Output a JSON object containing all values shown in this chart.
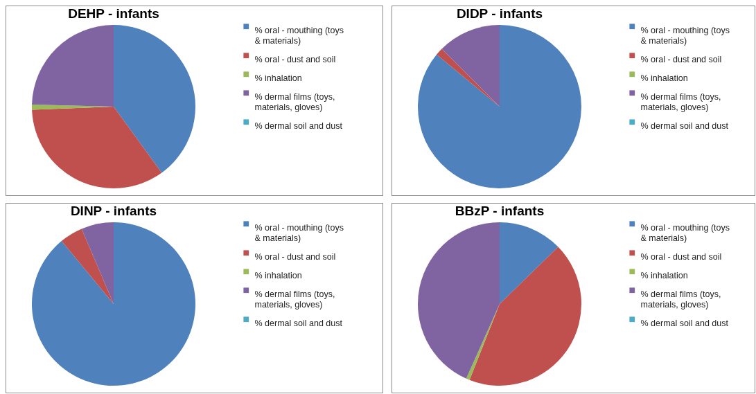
{
  "chart_data": [
    {
      "type": "pie",
      "title": "DEHP - infants",
      "categories": [
        "% oral - mouthing (toys & materials)",
        "% oral - dust and soil",
        "% inhalation",
        "% dermal films (toys, materials, gloves)",
        "% dermal soil and dust"
      ],
      "values": [
        40,
        34.4,
        1,
        24.6,
        0
      ],
      "colors": [
        "#4f81bd",
        "#c0504d",
        "#9bbb59",
        "#8064a2",
        "#4bacc6"
      ],
      "legend": "right"
    },
    {
      "type": "pie",
      "title": "DIDP - infants",
      "categories": [
        "% oral - mouthing (toys & materials)",
        "% oral - dust and soil",
        "% inhalation",
        "% dermal films (toys, materials, gloves)",
        "% dermal soil and dust"
      ],
      "values": [
        86,
        1.5,
        0,
        12.5,
        0
      ],
      "colors": [
        "#4f81bd",
        "#c0504d",
        "#9bbb59",
        "#8064a2",
        "#4bacc6"
      ],
      "legend": "right"
    },
    {
      "type": "pie",
      "title": "DINP - infants",
      "categories": [
        "% oral - mouthing (toys & materials)",
        "% oral - dust and soil",
        "% inhalation",
        "% dermal films (toys, materials, gloves)",
        "% dermal soil and dust"
      ],
      "values": [
        89,
        4.6,
        0,
        6.4,
        0
      ],
      "colors": [
        "#4f81bd",
        "#c0504d",
        "#9bbb59",
        "#8064a2",
        "#4bacc6"
      ],
      "legend": "right"
    },
    {
      "type": "pie",
      "title": "BBzP - infants",
      "categories": [
        "% oral - mouthing (toys & materials)",
        "% oral - dust and soil",
        "% inhalation",
        "% dermal films (toys, materials, gloves)",
        "% dermal soil and dust"
      ],
      "values": [
        12.7,
        43.3,
        0.7,
        43.3,
        0
      ],
      "colors": [
        "#4f81bd",
        "#c0504d",
        "#9bbb59",
        "#8064a2",
        "#4bacc6"
      ],
      "legend": "right"
    }
  ]
}
